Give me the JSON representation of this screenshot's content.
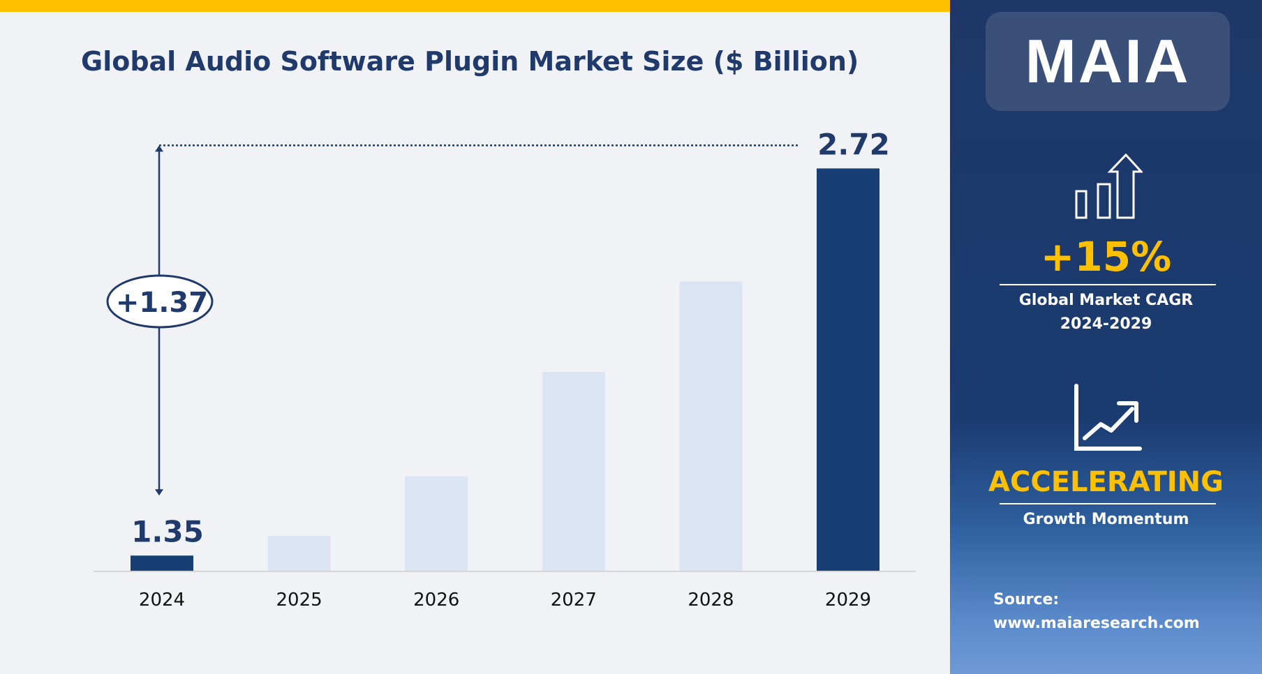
{
  "header": {
    "title": "Global Audio Software Plugin Market Size ($ Billion)"
  },
  "chart_data": {
    "type": "bar",
    "title": "Global Audio Software Plugin Market Size ($ Billion)",
    "categories": [
      "2024",
      "2025",
      "2026",
      "2027",
      "2028",
      "2029"
    ],
    "values": [
      1.35,
      1.42,
      1.63,
      2.0,
      2.32,
      2.72
    ],
    "data_labels": {
      "2024": "1.35",
      "2029": "2.72"
    },
    "annotation": {
      "label": "+1.37",
      "from": "2024",
      "to": "2029"
    },
    "highlight_color": "#173f73",
    "muted_color": "#dbe4f3",
    "grid": false
  },
  "panel": {
    "logo": "MAIA",
    "cagr_value": "+15%",
    "cagr_label": "Global Market CAGR",
    "cagr_period": "2024-2029",
    "momentum_value": "ACCELERATING",
    "momentum_label": "Growth Momentum",
    "source_label": "Source:",
    "source_url": "www.maiaresearch.com",
    "icons": [
      "bar-growth-arrow-icon",
      "line-chart-trend-icon"
    ],
    "accent_color": "#ffc000"
  }
}
